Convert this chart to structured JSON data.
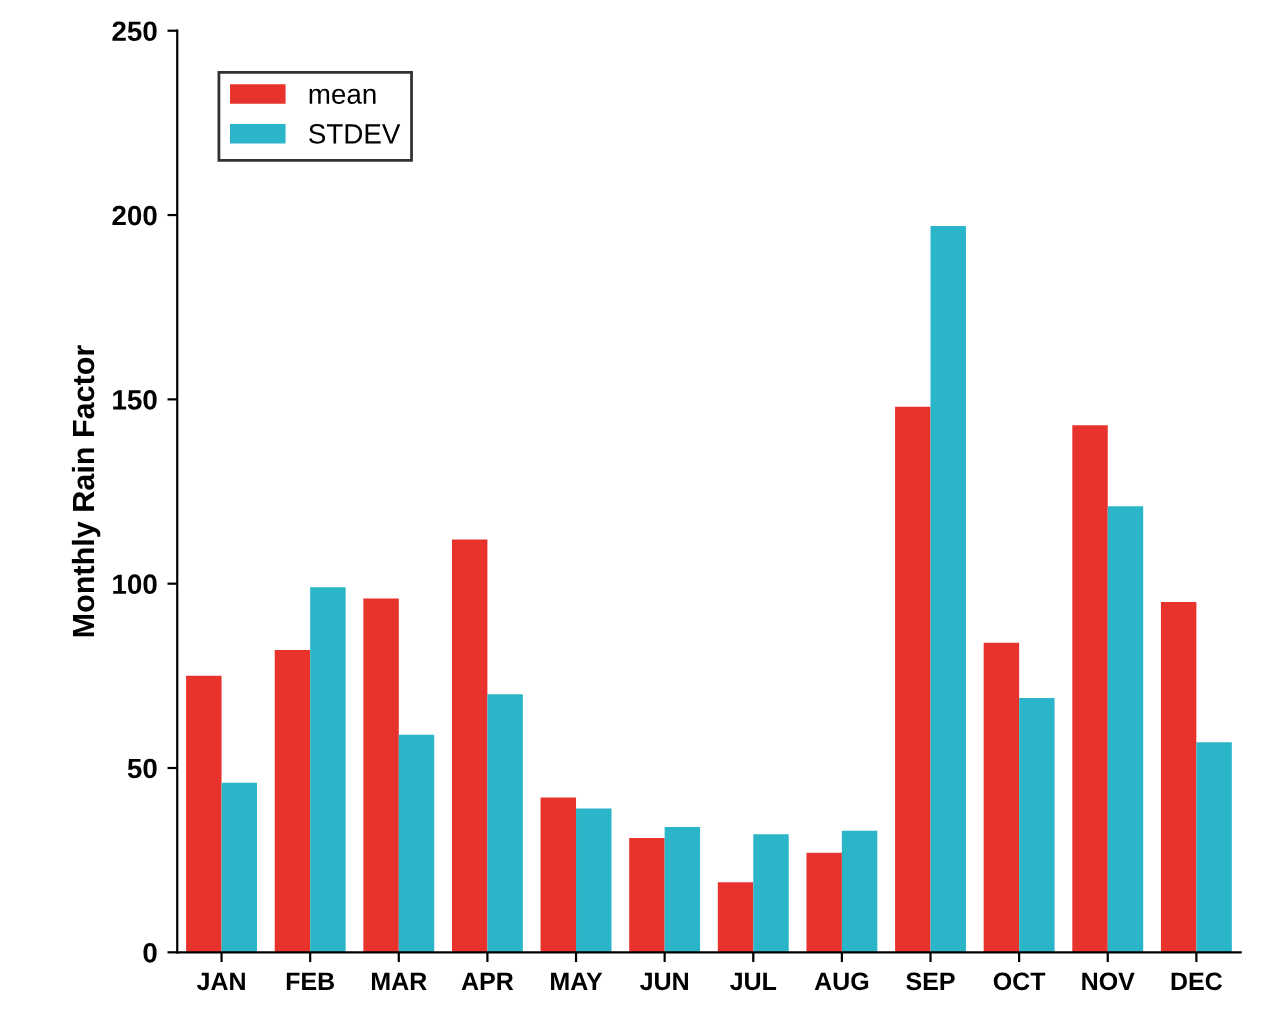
{
  "chart_data": {
    "type": "bar",
    "ylabel": "Monthly Rain Factor",
    "categories": [
      "JAN",
      "FEB",
      "MAR",
      "APR",
      "MAY",
      "JUN",
      "JUL",
      "AUG",
      "SEP",
      "OCT",
      "NOV",
      "DEC"
    ],
    "series": [
      {
        "name": "mean",
        "color": "#e8332d",
        "values": [
          75,
          82,
          96,
          112,
          42,
          31,
          19,
          27,
          148,
          84,
          143,
          95
        ]
      },
      {
        "name": "STDEV",
        "color": "#2bb5c8",
        "values": [
          46,
          99,
          59,
          70,
          39,
          34,
          32,
          33,
          197,
          69,
          121,
          57
        ]
      }
    ],
    "ylim": [
      0,
      250
    ],
    "yticks": [
      0,
      50,
      100,
      150,
      200,
      250
    ],
    "grid": false,
    "legend": "top left"
  }
}
